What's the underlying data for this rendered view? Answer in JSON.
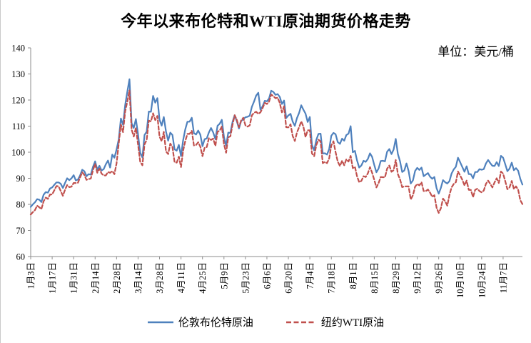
{
  "header": {
    "title": "今年以来布伦特和WTI原油期货价格走势",
    "unit_label": "单位：美元/桶"
  },
  "chart_data": {
    "type": "line",
    "title": "今年以来布伦特和WTI原油期货价格走势",
    "unit": "美元/桶",
    "xlabel": "",
    "ylabel": "",
    "ylim": [
      60,
      140
    ],
    "ytick_step": 10,
    "grid": false,
    "legend_position": "bottom",
    "x_tick_every": 10,
    "x_tick_labels": [
      "1月3日",
      "1月17日",
      "1月31日",
      "2月14日",
      "2月28日",
      "3月14日",
      "3月28日",
      "4月11日",
      "4月25日",
      "5月9日",
      "5月23日",
      "6月6日",
      "6月20日",
      "7月4日",
      "7月18日",
      "8月1日",
      "8月15日",
      "8月29日",
      "9月12日",
      "9月26日",
      "10月10日",
      "10月24日",
      "11月7日"
    ],
    "series": [
      {
        "name": "伦敦布伦特原油",
        "color": "#4F81BD",
        "line_style": "solid",
        "values": [
          79.0,
          80.0,
          80.8,
          82.0,
          81.8,
          80.9,
          83.7,
          84.7,
          84.5,
          86.1,
          86.5,
          87.5,
          88.4,
          88.4,
          87.9,
          86.3,
          88.2,
          90.0,
          89.3,
          90.0,
          91.2,
          89.2,
          89.5,
          91.1,
          93.3,
          92.7,
          90.8,
          91.6,
          91.4,
          94.4,
          96.5,
          93.3,
          94.8,
          93.0,
          93.5,
          95.4,
          96.8,
          94.1,
          99.1,
          97.9,
          101.0,
          105.0,
          112.9,
          110.5,
          118.1,
          123.2,
          128.0,
          111.1,
          109.3,
          112.7,
          106.9,
          99.9,
          98.0,
          106.6,
          107.9,
          115.6,
          115.5,
          121.6,
          119.0,
          120.7,
          112.5,
          110.2,
          113.5,
          107.9,
          104.4,
          107.5,
          106.6,
          101.1,
          100.6,
          102.8,
          98.5,
          104.6,
          108.8,
          111.7,
          111.7,
          113.2,
          107.3,
          106.8,
          108.3,
          106.7,
          102.3,
          105.0,
          105.3,
          107.6,
          109.3,
          107.6,
          105.0,
          110.1,
          110.9,
          112.4,
          105.9,
          102.5,
          107.5,
          107.4,
          111.6,
          114.2,
          111.9,
          109.1,
          112.0,
          112.6,
          113.4,
          113.6,
          114.0,
          117.4,
          119.4,
          121.7,
          122.8,
          116.3,
          117.6,
          119.7,
          119.5,
          120.6,
          123.6,
          123.1,
          122.0,
          122.3,
          121.2,
          118.5,
          119.8,
          113.1,
          114.1,
          114.7,
          111.7,
          110.1,
          113.1,
          115.1,
          118.0,
          116.3,
          114.8,
          111.6,
          113.5,
          102.8,
          100.7,
          104.7,
          107.0,
          107.1,
          99.5,
          99.6,
          99.1,
          101.2,
          106.3,
          107.4,
          106.9,
          103.9,
          103.2,
          105.2,
          104.4,
          106.6,
          107.1,
          110.0,
          100.0,
          100.5,
          96.8,
          94.1,
          94.9,
          96.7,
          96.3,
          97.4,
          99.6,
          98.2,
          95.1,
          92.3,
          93.7,
          96.6,
          96.7,
          96.5,
          100.2,
          101.2,
          99.3,
          101.0,
          105.1,
          99.3,
          96.5,
          92.4,
          93.0,
          95.7,
          92.8,
          88.0,
          89.2,
          92.8,
          94.0,
          93.2,
          94.1,
          90.8,
          91.4,
          92.0,
          90.6,
          89.8,
          90.5,
          86.2,
          84.1,
          86.3,
          89.3,
          88.5,
          88.0,
          88.9,
          91.8,
          93.4,
          94.4,
          97.9,
          96.2,
          94.3,
          92.5,
          94.6,
          91.6,
          91.6,
          90.0,
          92.4,
          92.4,
          93.5,
          93.3,
          93.5,
          95.7,
          97.0,
          95.8,
          94.8,
          94.7,
          96.2,
          94.7,
          98.6,
          97.9,
          95.4,
          92.7,
          93.7,
          96.0,
          93.1,
          93.9,
          92.9,
          89.8,
          87.6
        ]
      },
      {
        "name": "纽约WTI原油",
        "color": "#C0504D",
        "line_style": "dashed",
        "values": [
          76.1,
          77.0,
          77.8,
          79.5,
          78.9,
          78.2,
          81.2,
          82.6,
          82.1,
          83.8,
          83.8,
          85.4,
          87.0,
          86.9,
          85.1,
          83.3,
          85.6,
          87.4,
          86.6,
          86.8,
          88.2,
          88.2,
          88.3,
          90.3,
          92.3,
          91.3,
          89.4,
          89.7,
          89.9,
          93.1,
          95.5,
          92.1,
          93.7,
          91.8,
          91.1,
          91.1,
          92.4,
          92.1,
          92.8,
          91.6,
          95.7,
          103.4,
          110.6,
          107.7,
          115.7,
          119.4,
          123.7,
          108.7,
          106.0,
          109.3,
          103.0,
          96.4,
          95.0,
          103.0,
          104.7,
          112.1,
          111.8,
          114.9,
          112.3,
          113.9,
          106.0,
          104.2,
          107.8,
          100.3,
          99.3,
          103.3,
          102.0,
          96.2,
          96.0,
          98.3,
          94.3,
          100.6,
          104.3,
          107.0,
          107.0,
          108.2,
          102.6,
          102.8,
          103.8,
          102.1,
          98.5,
          101.7,
          102.0,
          105.4,
          104.7,
          105.2,
          102.4,
          107.8,
          108.3,
          109.8,
          103.1,
          99.8,
          105.7,
          106.1,
          110.5,
          114.2,
          112.4,
          109.6,
          112.2,
          113.2,
          110.3,
          109.8,
          110.3,
          114.1,
          115.1,
          115.5,
          114.7,
          115.3,
          116.9,
          118.9,
          118.5,
          119.4,
          122.1,
          121.5,
          120.7,
          120.9,
          118.9,
          115.3,
          117.6,
          109.6,
          109.5,
          110.7,
          106.2,
          104.3,
          107.6,
          109.6,
          111.8,
          109.8,
          105.8,
          108.4,
          108.4,
          99.5,
          98.5,
          102.7,
          104.8,
          104.1,
          95.8,
          96.3,
          95.8,
          97.6,
          102.6,
          104.2,
          100.0,
          96.4,
          94.7,
          96.7,
          95.0,
          97.3,
          96.4,
          98.6,
          93.9,
          94.4,
          90.7,
          88.5,
          89.0,
          90.8,
          90.5,
          91.9,
          94.3,
          92.1,
          89.4,
          86.5,
          88.1,
          90.5,
          90.4,
          90.4,
          93.7,
          94.9,
          92.5,
          93.1,
          97.0,
          91.6,
          89.6,
          86.6,
          86.9,
          86.9,
          86.9,
          81.9,
          83.5,
          86.8,
          87.8,
          87.3,
          88.5,
          85.1,
          85.1,
          85.7,
          84.5,
          82.9,
          83.5,
          78.7,
          76.7,
          78.5,
          82.2,
          81.2,
          79.5,
          83.6,
          86.5,
          87.8,
          88.5,
          92.6,
          91.1,
          89.4,
          87.3,
          89.1,
          85.6,
          85.5,
          82.8,
          85.6,
          86.0,
          85.1,
          84.6,
          85.3,
          87.9,
          89.1,
          87.9,
          86.5,
          88.4,
          90.0,
          88.2,
          92.6,
          91.8,
          88.9,
          85.8,
          86.5,
          89.0,
          85.9,
          86.9,
          85.6,
          81.6,
          80.1
        ]
      }
    ]
  },
  "style": {
    "axis_color": "#8e8e8e",
    "text_color": "#000000"
  }
}
